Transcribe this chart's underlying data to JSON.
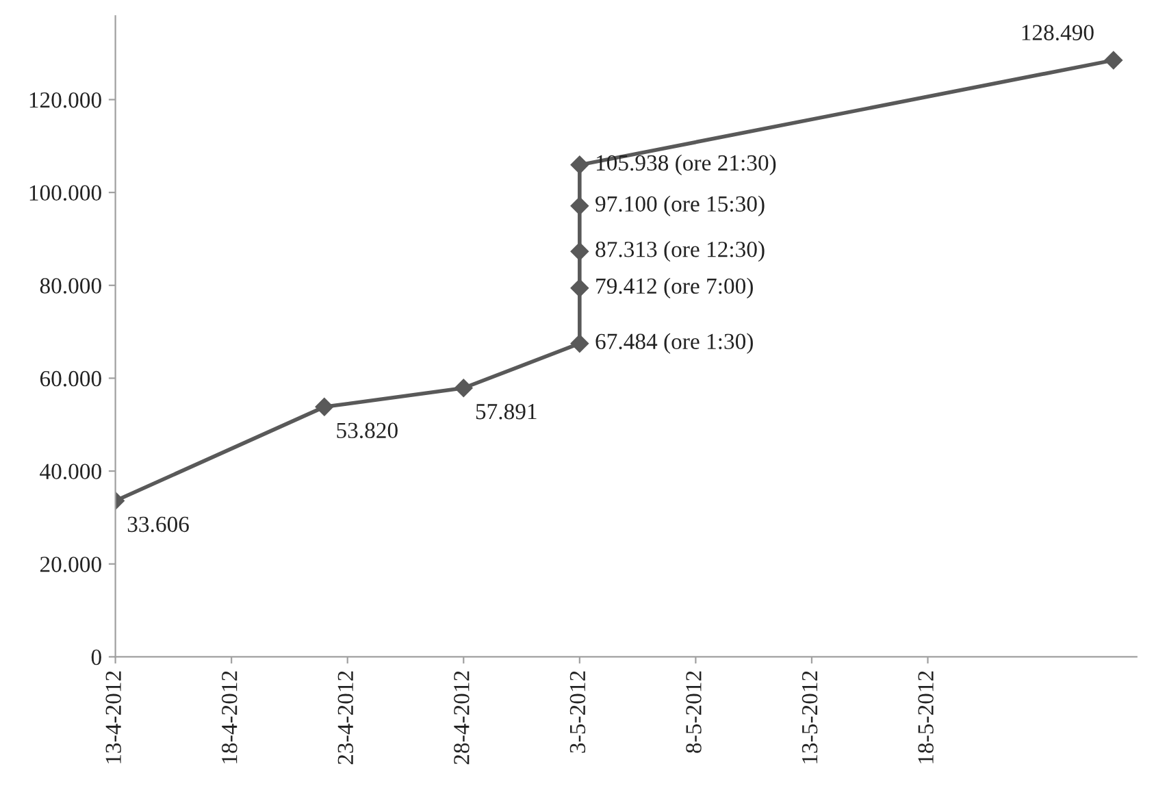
{
  "chart_data": {
    "type": "line",
    "x": [
      "2012-04-13",
      "2012-04-22",
      "2012-04-28",
      "2012-05-03",
      "2012-05-03",
      "2012-05-03",
      "2012-05-03",
      "2012-05-03",
      "2012-05-26"
    ],
    "series": [
      {
        "color": "#595959",
        "values": [
          33606,
          53820,
          57891,
          67484,
          79412,
          87313,
          97100,
          105938,
          128490
        ],
        "value_labels": [
          "33.606",
          "53.820",
          "57.891",
          "67.484 (ore 1:30)",
          "79.412 (ore 7:00)",
          "87.313 (ore 12:30)",
          "97.100 (ore 15:30)",
          "105.938 (ore 21:30)",
          "128.490"
        ]
      }
    ],
    "marker": "diamond",
    "line_style": "solid",
    "grid": false,
    "legend": false,
    "xlim": [
      "2012-04-13",
      "2012-05-27"
    ],
    "xticks": [
      {
        "value": "2012-04-13",
        "label": "13-4-2012"
      },
      {
        "value": "2012-04-18",
        "label": "18-4-2012"
      },
      {
        "value": "2012-04-23",
        "label": "23-4-2012"
      },
      {
        "value": "2012-04-28",
        "label": "28-4-2012"
      },
      {
        "value": "2012-05-03",
        "label": "3-5-2012"
      },
      {
        "value": "2012-05-08",
        "label": "8-5-2012"
      },
      {
        "value": "2012-05-13",
        "label": "13-5-2012"
      },
      {
        "value": "2012-05-18",
        "label": "18-5-2012"
      }
    ],
    "ylim": [
      0,
      138000
    ],
    "yticks": [
      {
        "value": 0,
        "label": "0"
      },
      {
        "value": 20000,
        "label": "20.000"
      },
      {
        "value": 40000,
        "label": "40.000"
      },
      {
        "value": 60000,
        "label": "60.000"
      },
      {
        "value": 80000,
        "label": "80.000"
      },
      {
        "value": 100000,
        "label": "100.000"
      },
      {
        "value": 120000,
        "label": "120.000"
      }
    ]
  }
}
